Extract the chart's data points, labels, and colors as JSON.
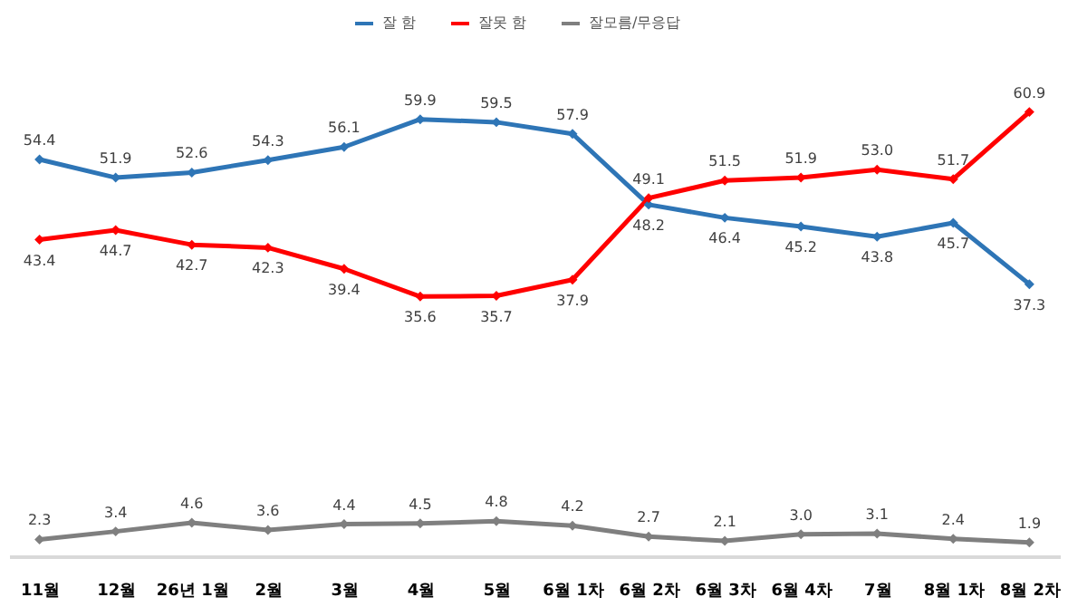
{
  "chart_data": {
    "type": "line",
    "categories": [
      "11월",
      "12월",
      "26년 1월",
      "2월",
      "3월",
      "4월",
      "5월",
      "6월 1차",
      "6월 2차",
      "6월 3차",
      "6월 4차",
      "7월",
      "8월 1차",
      "8월 2차"
    ],
    "series": [
      {
        "name": "잘 함",
        "color": "#2e75b6",
        "values": [
          54.4,
          51.9,
          52.6,
          54.3,
          56.1,
          59.9,
          59.5,
          57.9,
          48.2,
          46.4,
          45.2,
          43.8,
          45.7,
          37.3
        ],
        "value_labels": [
          "54.4",
          "51.9",
          "52.6",
          "54.3",
          "56.1",
          "59.9",
          "59.5",
          "57.9",
          "48.2",
          "46.4",
          "45.2",
          "43.8",
          "45.7",
          "37.3"
        ]
      },
      {
        "name": "잘못 함",
        "color": "#ff0000",
        "values": [
          43.4,
          44.7,
          42.7,
          42.3,
          39.4,
          35.6,
          35.7,
          37.9,
          49.1,
          51.5,
          51.9,
          53.0,
          51.7,
          60.9
        ],
        "value_labels": [
          "43.4",
          "44.7",
          "42.7",
          "42.3",
          "39.4",
          "35.6",
          "35.7",
          "37.9",
          "49.1",
          "51.5",
          "51.9",
          "53.0",
          "51.7",
          "60.9"
        ]
      },
      {
        "name": "잘모름/무응답",
        "color": "#7f7f7f",
        "values": [
          2.3,
          3.4,
          4.6,
          3.6,
          4.4,
          4.5,
          4.8,
          4.2,
          2.7,
          2.1,
          3.0,
          3.1,
          2.4,
          1.9
        ],
        "value_labels": [
          "2.3",
          "3.4",
          "4.6",
          "3.6",
          "4.4",
          "4.5",
          "4.8",
          "4.2",
          "2.7",
          "2.1",
          "3.0",
          "3.1",
          "2.4",
          "1.9"
        ]
      }
    ],
    "marker": "diamond",
    "line_style": "solid",
    "legend": "top",
    "grid": false,
    "tick_labels": "x"
  }
}
